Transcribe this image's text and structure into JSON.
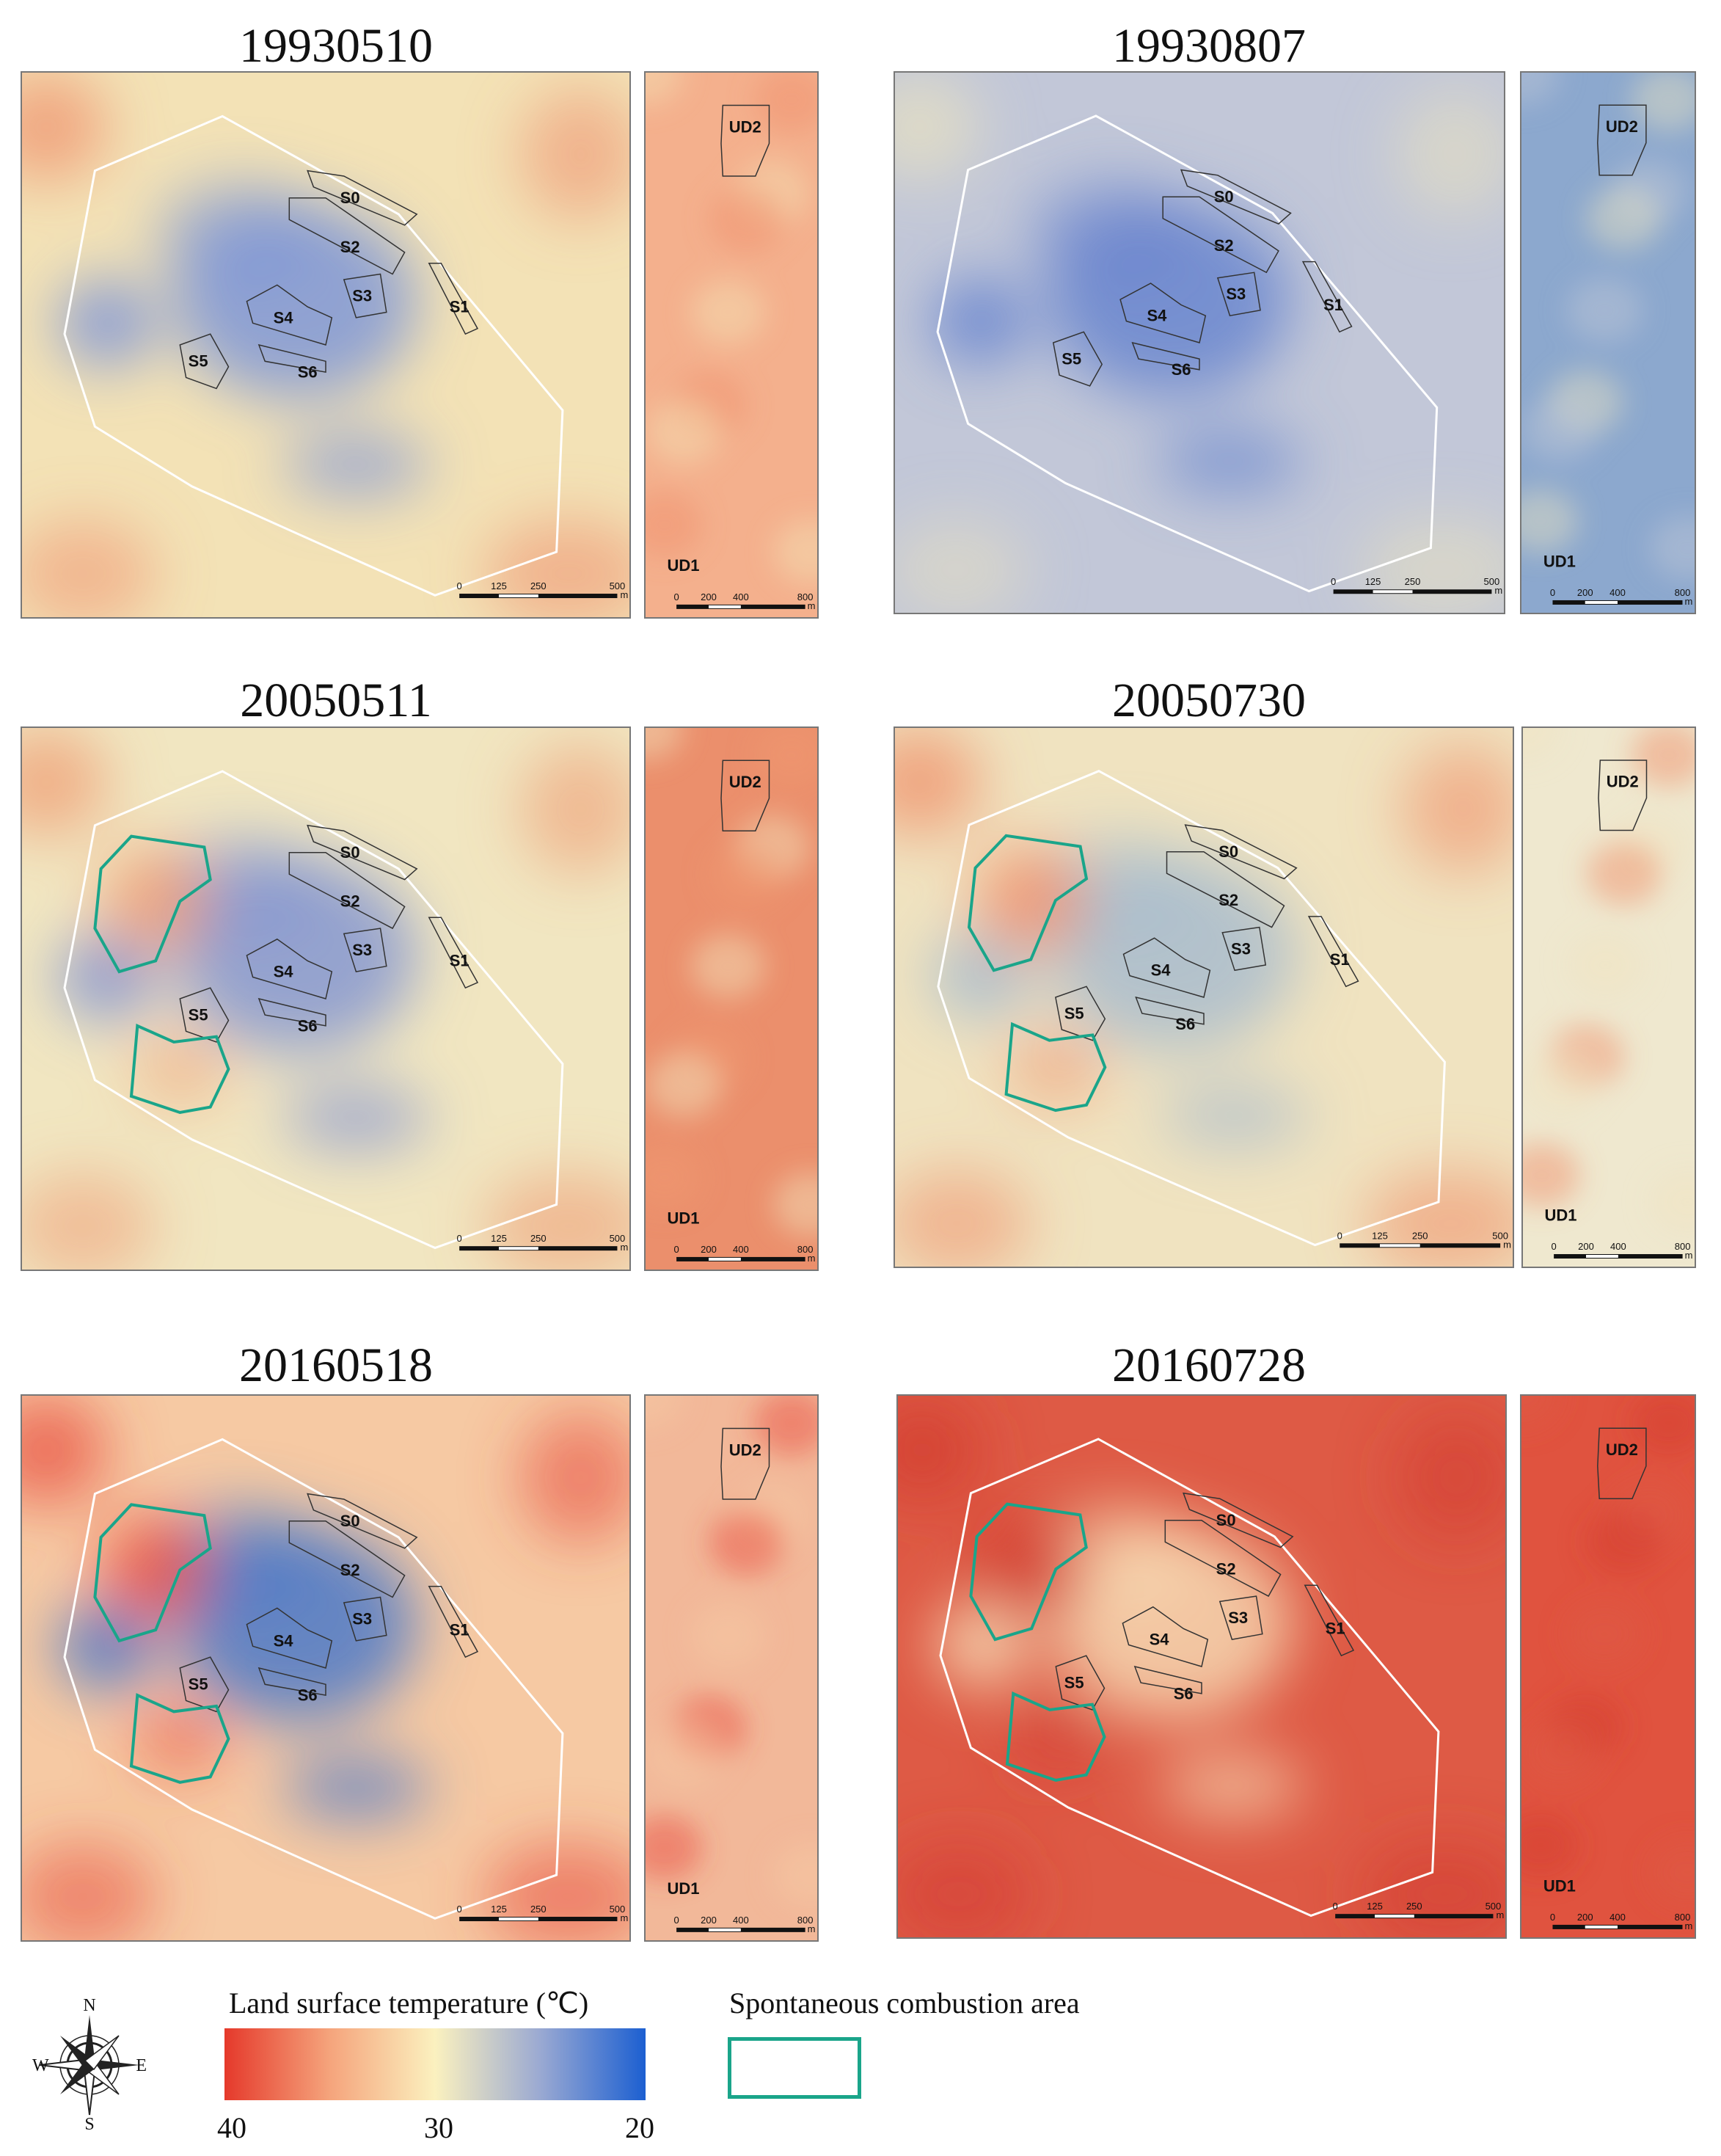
{
  "panels": [
    {
      "date": "19930510",
      "base": "#f3e2b6",
      "cool": "#7f96d6",
      "hot": "#ef8d6b",
      "strip": "#f4b08d",
      "combustion": false
    },
    {
      "date": "19930807",
      "base": "#c2c7d8",
      "cool": "#6a86cf",
      "hot": "#e9e2c0",
      "strip": "#8ca8ce",
      "combustion": false
    },
    {
      "date": "20050511",
      "base": "#f1e6c1",
      "cool": "#8596d0",
      "hot": "#ef9870",
      "strip": "#eb8f6c",
      "combustion": true
    },
    {
      "date": "20050730",
      "base": "#f0e3c0",
      "cool": "#a9bccd",
      "hot": "#f08a64",
      "strip": "#efe8cf",
      "combustion": true
    },
    {
      "date": "20160518",
      "base": "#f6c9a3",
      "cool": "#4d79c8",
      "hot": "#e8483a",
      "strip": "#f2b899",
      "combustion": true
    },
    {
      "date": "20160728",
      "base": "#de5a45",
      "cool": "#f6d8b2",
      "hot": "#d23a2f",
      "strip": "#e0533f",
      "combustion": true
    }
  ],
  "labels": {
    "s0": "S0",
    "s1": "S1",
    "s2": "S2",
    "s3": "S3",
    "s4": "S4",
    "s5": "S5",
    "s6": "S6",
    "ud1": "UD1",
    "ud2": "UD2"
  },
  "scalebars": {
    "main": [
      "0",
      "125",
      "250",
      "500",
      "m"
    ],
    "strip": [
      "0",
      "200",
      "400",
      "800",
      "m"
    ]
  },
  "legend": {
    "lst_title": "Land surface temperature (℃)",
    "ticks": [
      "40",
      "30",
      "20"
    ],
    "ramp_colors": [
      "#e5392b",
      "#f5a47c",
      "#fbf1bf",
      "#9aa9d2",
      "#1c5fd1"
    ],
    "combustion_title": "Spontaneous combustion area",
    "combustion_color": "#1aa58a"
  },
  "compass": {
    "n": "N",
    "s": "S",
    "e": "E",
    "w": "W"
  }
}
